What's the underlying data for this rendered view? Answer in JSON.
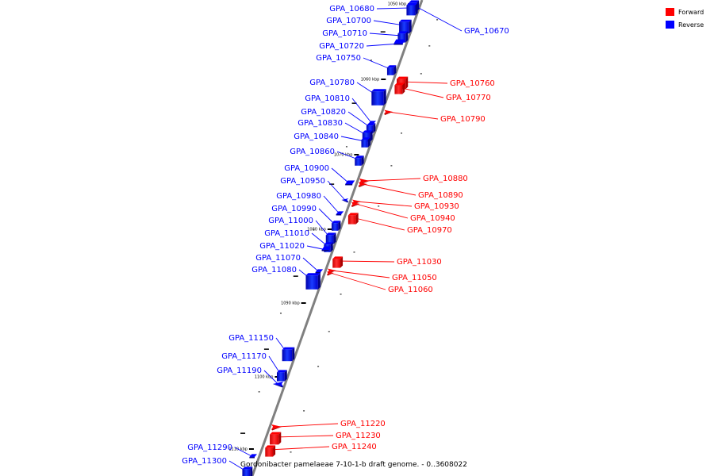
{
  "legend": [
    {
      "label": "Forward",
      "color": "#ff0000"
    },
    {
      "label": "Reverse",
      "color": "#0000ff"
    }
  ],
  "footer": "Gordonibacter pamelaeae 7-10-1-b draft genome. - 0..3608022",
  "colors": {
    "forward": "#ff0000",
    "reverse": "#0000ff",
    "backbone": "#808080"
  },
  "kbp_marks": [
    "1050 kbp",
    "1060 kbp",
    "1070 kbp",
    "1080 kbp",
    "1090 kbp",
    "1100 kbp",
    "1110 kbp"
  ],
  "genes": [
    {
      "id": "GPA_10670",
      "strand": "reverse"
    },
    {
      "id": "GPA_10680",
      "strand": "reverse"
    },
    {
      "id": "GPA_10700",
      "strand": "reverse"
    },
    {
      "id": "GPA_10710",
      "strand": "reverse"
    },
    {
      "id": "GPA_10720",
      "strand": "reverse"
    },
    {
      "id": "GPA_10750",
      "strand": "reverse"
    },
    {
      "id": "GPA_10760",
      "strand": "forward"
    },
    {
      "id": "GPA_10770",
      "strand": "forward"
    },
    {
      "id": "GPA_10780",
      "strand": "reverse"
    },
    {
      "id": "GPA_10790",
      "strand": "forward"
    },
    {
      "id": "GPA_10810",
      "strand": "reverse"
    },
    {
      "id": "GPA_10820",
      "strand": "reverse"
    },
    {
      "id": "GPA_10830",
      "strand": "reverse"
    },
    {
      "id": "GPA_10840",
      "strand": "reverse"
    },
    {
      "id": "GPA_10860",
      "strand": "reverse"
    },
    {
      "id": "GPA_10880",
      "strand": "forward"
    },
    {
      "id": "GPA_10890",
      "strand": "forward"
    },
    {
      "id": "GPA_10900",
      "strand": "reverse"
    },
    {
      "id": "GPA_10930",
      "strand": "forward"
    },
    {
      "id": "GPA_10940",
      "strand": "forward"
    },
    {
      "id": "GPA_10950",
      "strand": "reverse"
    },
    {
      "id": "GPA_10970",
      "strand": "forward"
    },
    {
      "id": "GPA_10980",
      "strand": "reverse"
    },
    {
      "id": "GPA_10990",
      "strand": "reverse"
    },
    {
      "id": "GPA_11000",
      "strand": "reverse"
    },
    {
      "id": "GPA_11010",
      "strand": "reverse"
    },
    {
      "id": "GPA_11020",
      "strand": "reverse"
    },
    {
      "id": "GPA_11030",
      "strand": "forward"
    },
    {
      "id": "GPA_11050",
      "strand": "forward"
    },
    {
      "id": "GPA_11060",
      "strand": "forward"
    },
    {
      "id": "GPA_11070",
      "strand": "reverse"
    },
    {
      "id": "GPA_11080",
      "strand": "reverse"
    },
    {
      "id": "GPA_11150",
      "strand": "reverse"
    },
    {
      "id": "GPA_11170",
      "strand": "reverse"
    },
    {
      "id": "GPA_11190",
      "strand": "reverse"
    },
    {
      "id": "GPA_11220",
      "strand": "forward"
    },
    {
      "id": "GPA_11230",
      "strand": "forward"
    },
    {
      "id": "GPA_11240",
      "strand": "forward"
    },
    {
      "id": "GPA_11290",
      "strand": "reverse"
    },
    {
      "id": "GPA_11300",
      "strand": "reverse"
    }
  ]
}
